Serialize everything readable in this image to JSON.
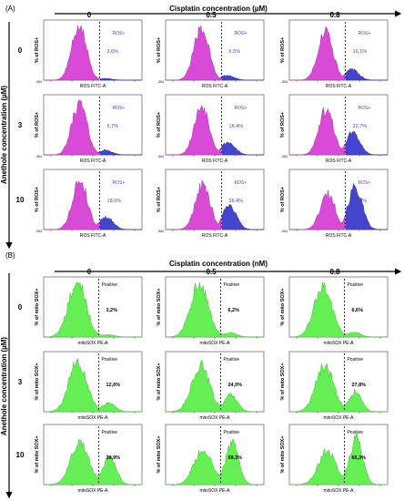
{
  "chart_data": [
    {
      "type": "area",
      "panel": "(A)",
      "col_header": "Cisplatin concentration (µM)",
      "row_header": "Anethole concentration (µM)",
      "cols": [
        "0",
        "0.5",
        "0.8"
      ],
      "rows": [
        "0",
        "3",
        "10"
      ],
      "ylabel": "% of ROS+",
      "xlabel": "ROS FITC-A",
      "gate_label": "ROS+",
      "colors": {
        "fill_main": "#d94bd6",
        "fill_positive": "#4444cc",
        "label": "#4a4ab8"
      },
      "xlim": [
        -304,
        100000
      ],
      "x_ticks": [
        "-304",
        "10^2",
        "10^3",
        "10^4",
        "10^5"
      ],
      "gate_x": 0.57,
      "percent_positive": [
        [
          "2,6%",
          "6,5%",
          "16,1%"
        ],
        [
          "6,7%",
          "18,4%",
          "32,7%"
        ],
        [
          "18,6%",
          "36,4%",
          "62,3%"
        ]
      ],
      "values_percent_positive": [
        [
          2.6,
          6.5,
          16.1
        ],
        [
          6.7,
          18.4,
          32.7
        ],
        [
          18.6,
          36.4,
          62.3
        ]
      ]
    },
    {
      "type": "area",
      "panel": "(B)",
      "col_header": "Cisplatin concentration (nM)",
      "row_header": "Anethole concentration (µM)",
      "cols": [
        "0",
        "0.5",
        "0.8"
      ],
      "rows": [
        "0",
        "3",
        "10"
      ],
      "ylabel": "% of mito SOX+",
      "xlabel": "mitoSOX PE-A",
      "gate_label": "Positive",
      "colors": {
        "fill_main": "#66ee55",
        "fill_positive": "#66ee55",
        "label": "#000000"
      },
      "gate_x": 0.56,
      "percent_positive": [
        [
          "3,2%",
          "6,2%",
          "6,6%"
        ],
        [
          "12,6%",
          "24,0%",
          "27,8%"
        ],
        [
          "38,9%",
          "59,3%",
          "65,3%"
        ]
      ],
      "values_percent_positive": [
        [
          3.2,
          6.2,
          6.6
        ],
        [
          12.6,
          24.0,
          27.8
        ],
        [
          38.9,
          59.3,
          65.3
        ]
      ]
    }
  ]
}
